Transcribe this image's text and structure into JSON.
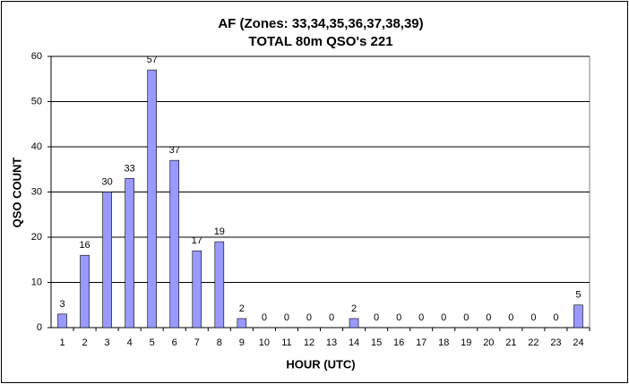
{
  "chart_data": {
    "type": "bar",
    "title": "AF (Zones: 33,34,35,36,37,38,39)",
    "subtitle": "TOTAL 80m QSO's 221",
    "x_label": "HOUR (UTC)",
    "y_label": "QSO COUNT",
    "categories": [
      "1",
      "2",
      "3",
      "4",
      "5",
      "6",
      "7",
      "8",
      "9",
      "10",
      "11",
      "12",
      "13",
      "14",
      "15",
      "16",
      "17",
      "18",
      "19",
      "20",
      "21",
      "22",
      "23",
      "24"
    ],
    "values": [
      3,
      16,
      30,
      33,
      57,
      37,
      17,
      19,
      2,
      0,
      0,
      0,
      0,
      2,
      0,
      0,
      0,
      0,
      0,
      0,
      0,
      0,
      0,
      5
    ],
    "color": "#9999ff",
    "ylim": [
      0,
      60
    ],
    "yticks": [
      0,
      10,
      20,
      30,
      40,
      50,
      60
    ],
    "grid": true
  }
}
